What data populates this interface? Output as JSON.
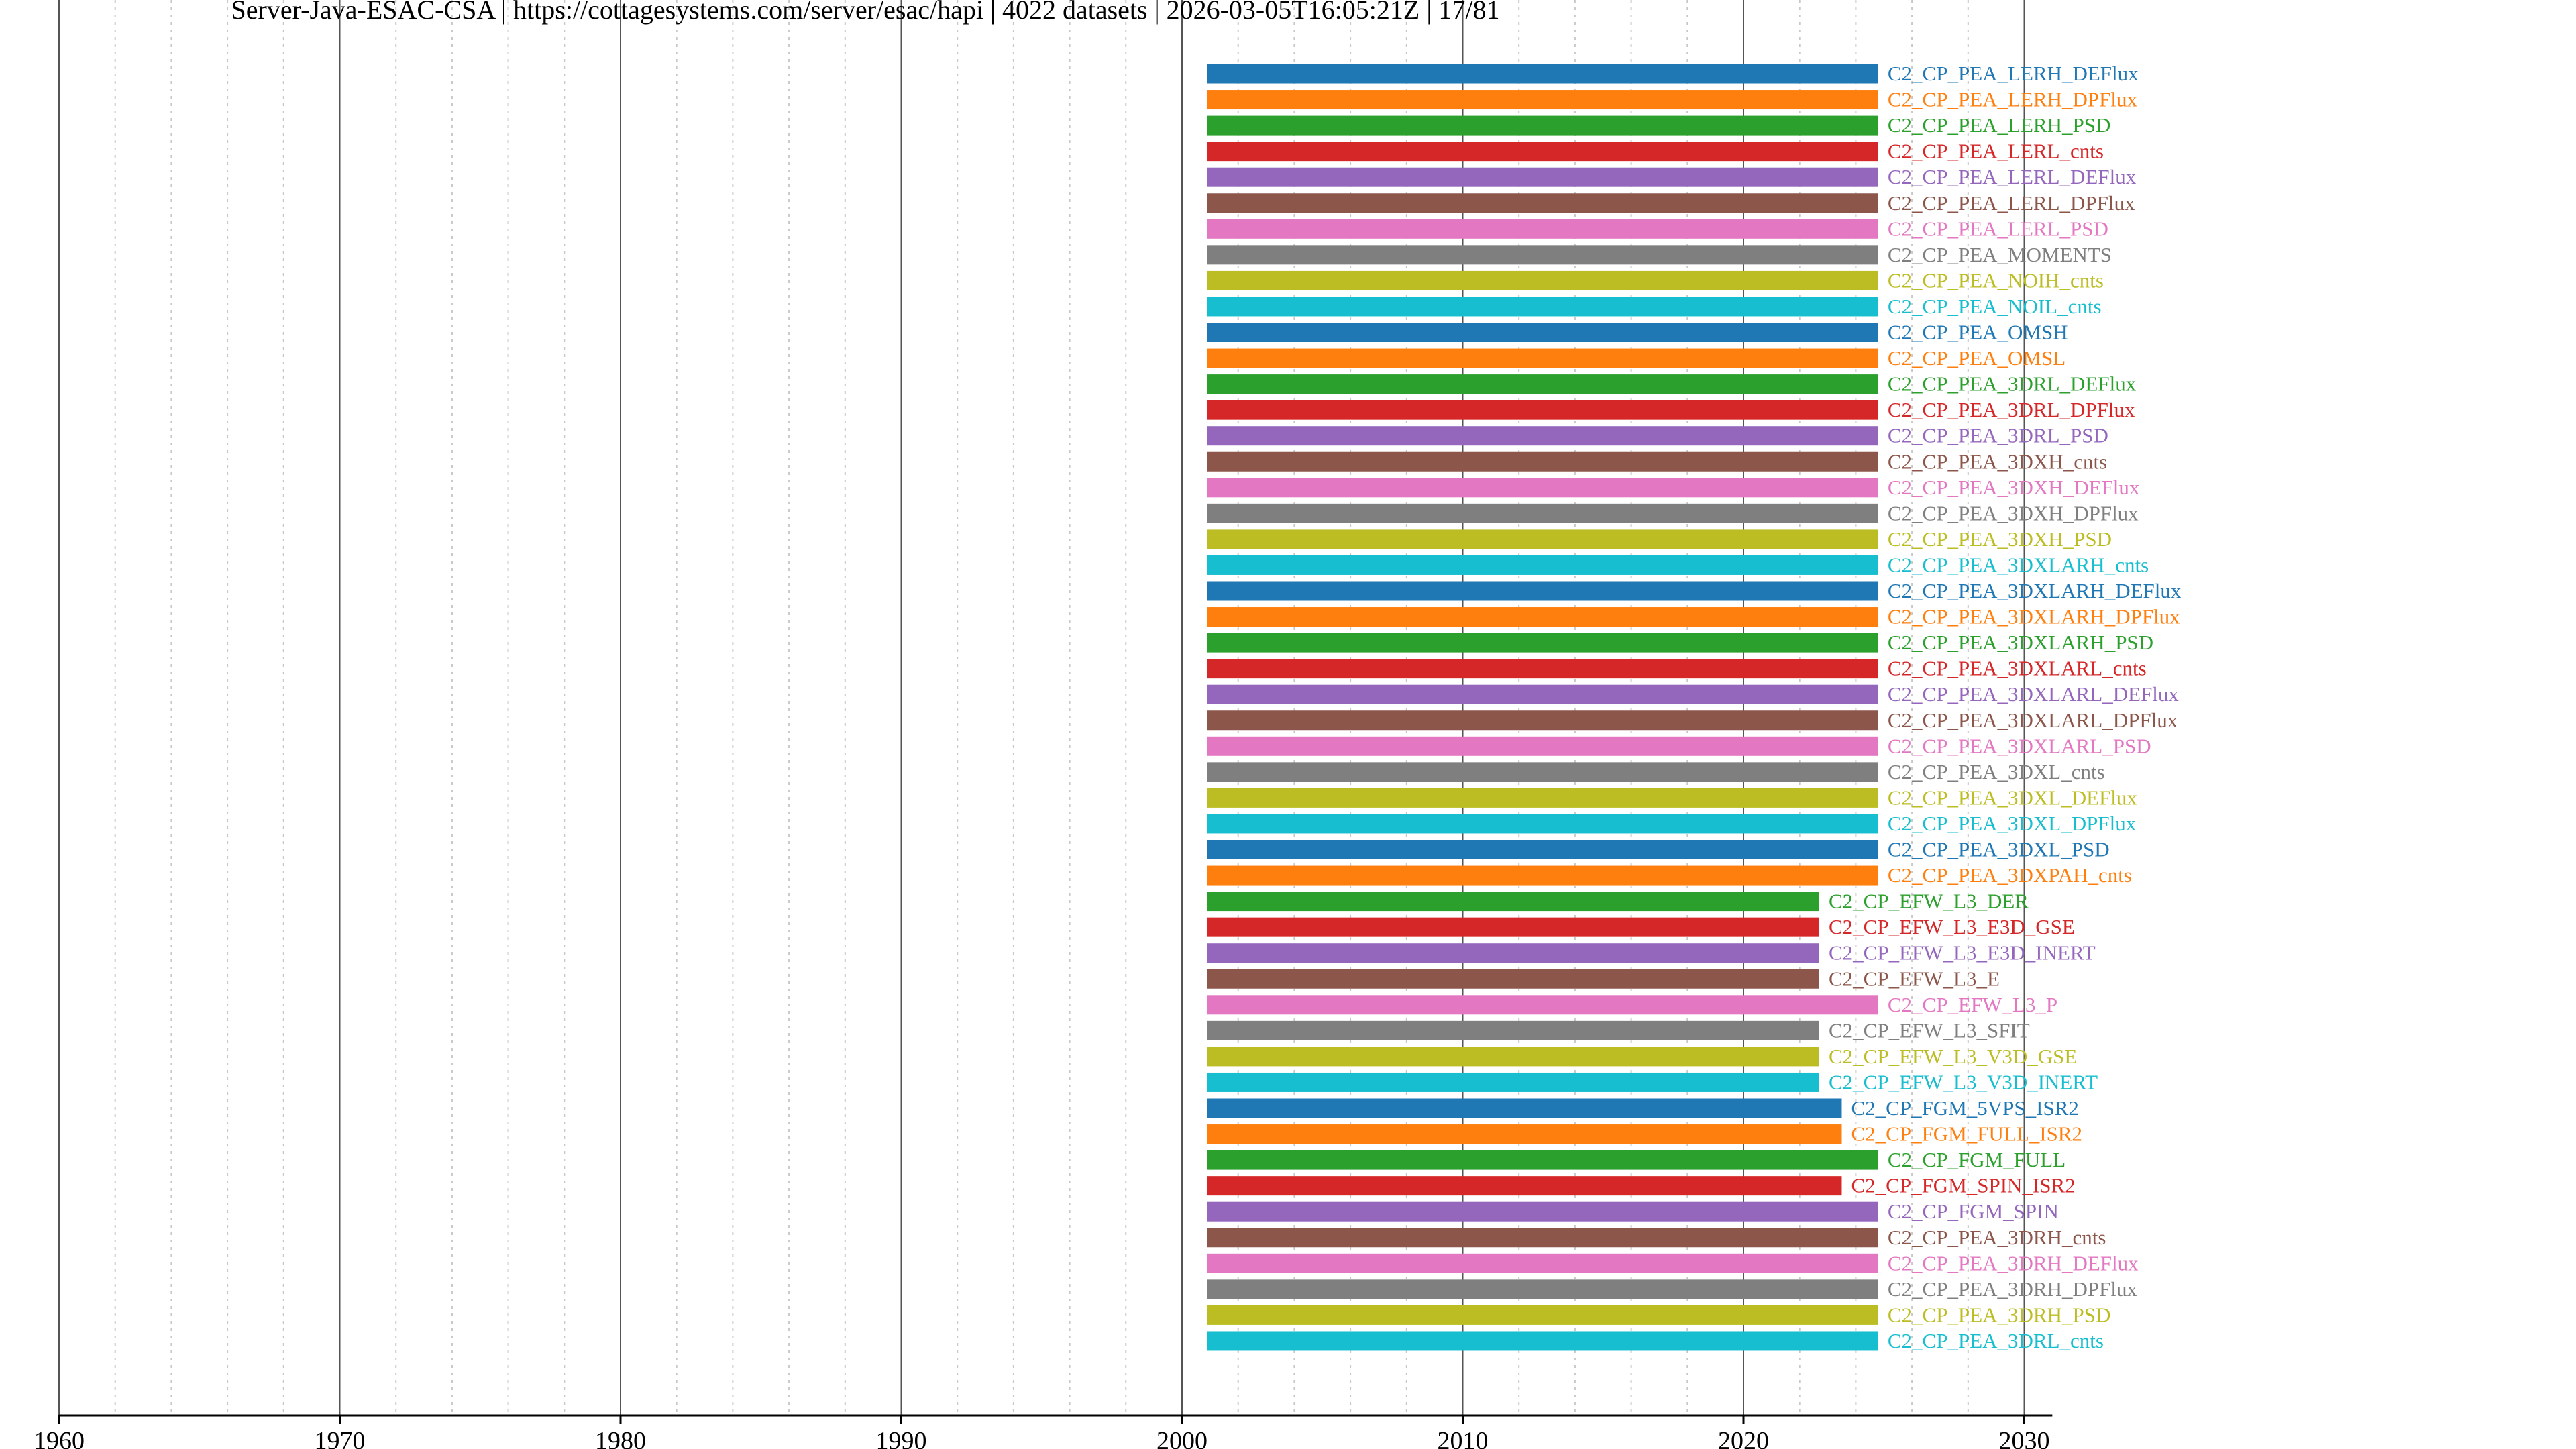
{
  "chart_data": {
    "type": "bar",
    "orientation": "horizontal-timeline",
    "title": "Server-Java-ESAC-CSA | https://cottagesystems.com/server/esac/hapi | 4022 datasets | 2026-03-05T16:05:21Z | 17/81",
    "xlabel": "",
    "ylabel": "",
    "xlim": [
      1960,
      2031
    ],
    "x_ticks_major": [
      "1960",
      "1970",
      "1980",
      "1990",
      "2000",
      "2010",
      "2020",
      "2030"
    ],
    "x_minor_step": 2,
    "grid": "vertical: solid at decades, dotted every 2 years",
    "labels_position": "right of each bar",
    "palette": [
      "#1f77b4",
      "#ff7f0e",
      "#2ca02c",
      "#d62728",
      "#9467bd",
      "#8c564b",
      "#e377c2",
      "#7f7f7f",
      "#bcbd22",
      "#17becf"
    ],
    "series": [
      {
        "name": "C2_CP_PEA_LERH_DEFlux",
        "start": 2000.9,
        "end": 2024.8
      },
      {
        "name": "C2_CP_PEA_LERH_DPFlux",
        "start": 2000.9,
        "end": 2024.8
      },
      {
        "name": "C2_CP_PEA_LERH_PSD",
        "start": 2000.9,
        "end": 2024.8
      },
      {
        "name": "C2_CP_PEA_LERL_cnts",
        "start": 2000.9,
        "end": 2024.8
      },
      {
        "name": "C2_CP_PEA_LERL_DEFlux",
        "start": 2000.9,
        "end": 2024.8
      },
      {
        "name": "C2_CP_PEA_LERL_DPFlux",
        "start": 2000.9,
        "end": 2024.8
      },
      {
        "name": "C2_CP_PEA_LERL_PSD",
        "start": 2000.9,
        "end": 2024.8
      },
      {
        "name": "C2_CP_PEA_MOMENTS",
        "start": 2000.9,
        "end": 2024.8
      },
      {
        "name": "C2_CP_PEA_NOIH_cnts",
        "start": 2000.9,
        "end": 2024.8
      },
      {
        "name": "C2_CP_PEA_NOIL_cnts",
        "start": 2000.9,
        "end": 2024.8
      },
      {
        "name": "C2_CP_PEA_OMSH",
        "start": 2000.9,
        "end": 2024.8
      },
      {
        "name": "C2_CP_PEA_OMSL",
        "start": 2000.9,
        "end": 2024.8
      },
      {
        "name": "C2_CP_PEA_3DRL_DEFlux",
        "start": 2000.9,
        "end": 2024.8
      },
      {
        "name": "C2_CP_PEA_3DRL_DPFlux",
        "start": 2000.9,
        "end": 2024.8
      },
      {
        "name": "C2_CP_PEA_3DRL_PSD",
        "start": 2000.9,
        "end": 2024.8
      },
      {
        "name": "C2_CP_PEA_3DXH_cnts",
        "start": 2000.9,
        "end": 2024.8
      },
      {
        "name": "C2_CP_PEA_3DXH_DEFlux",
        "start": 2000.9,
        "end": 2024.8
      },
      {
        "name": "C2_CP_PEA_3DXH_DPFlux",
        "start": 2000.9,
        "end": 2024.8
      },
      {
        "name": "C2_CP_PEA_3DXH_PSD",
        "start": 2000.9,
        "end": 2024.8
      },
      {
        "name": "C2_CP_PEA_3DXLARH_cnts",
        "start": 2000.9,
        "end": 2024.8
      },
      {
        "name": "C2_CP_PEA_3DXLARH_DEFlux",
        "start": 2000.9,
        "end": 2024.8
      },
      {
        "name": "C2_CP_PEA_3DXLARH_DPFlux",
        "start": 2000.9,
        "end": 2024.8
      },
      {
        "name": "C2_CP_PEA_3DXLARH_PSD",
        "start": 2000.9,
        "end": 2024.8
      },
      {
        "name": "C2_CP_PEA_3DXLARL_cnts",
        "start": 2000.9,
        "end": 2024.8
      },
      {
        "name": "C2_CP_PEA_3DXLARL_DEFlux",
        "start": 2000.9,
        "end": 2024.8
      },
      {
        "name": "C2_CP_PEA_3DXLARL_DPFlux",
        "start": 2000.9,
        "end": 2024.8
      },
      {
        "name": "C2_CP_PEA_3DXLARL_PSD",
        "start": 2000.9,
        "end": 2024.8
      },
      {
        "name": "C2_CP_PEA_3DXL_cnts",
        "start": 2000.9,
        "end": 2024.8
      },
      {
        "name": "C2_CP_PEA_3DXL_DEFlux",
        "start": 2000.9,
        "end": 2024.8
      },
      {
        "name": "C2_CP_PEA_3DXL_DPFlux",
        "start": 2000.9,
        "end": 2024.8
      },
      {
        "name": "C2_CP_PEA_3DXL_PSD",
        "start": 2000.9,
        "end": 2024.8
      },
      {
        "name": "C2_CP_PEA_3DXPAH_cnts",
        "start": 2000.9,
        "end": 2024.8
      },
      {
        "name": "C2_CP_EFW_L3_DER",
        "start": 2000.9,
        "end": 2022.7
      },
      {
        "name": "C2_CP_EFW_L3_E3D_GSE",
        "start": 2000.9,
        "end": 2022.7
      },
      {
        "name": "C2_CP_EFW_L3_E3D_INERT",
        "start": 2000.9,
        "end": 2022.7
      },
      {
        "name": "C2_CP_EFW_L3_E",
        "start": 2000.9,
        "end": 2022.7
      },
      {
        "name": "C2_CP_EFW_L3_P",
        "start": 2000.9,
        "end": 2024.8
      },
      {
        "name": "C2_CP_EFW_L3_SFIT",
        "start": 2000.9,
        "end": 2022.7
      },
      {
        "name": "C2_CP_EFW_L3_V3D_GSE",
        "start": 2000.9,
        "end": 2022.7
      },
      {
        "name": "C2_CP_EFW_L3_V3D_INERT",
        "start": 2000.9,
        "end": 2022.7
      },
      {
        "name": "C2_CP_FGM_5VPS_ISR2",
        "start": 2000.9,
        "end": 2023.5
      },
      {
        "name": "C2_CP_FGM_FULL_ISR2",
        "start": 2000.9,
        "end": 2023.5
      },
      {
        "name": "C2_CP_FGM_FULL",
        "start": 2000.9,
        "end": 2024.8
      },
      {
        "name": "C2_CP_FGM_SPIN_ISR2",
        "start": 2000.9,
        "end": 2023.5
      },
      {
        "name": "C2_CP_FGM_SPIN",
        "start": 2000.9,
        "end": 2024.8
      },
      {
        "name": "C2_CP_PEA_3DRH_cnts",
        "start": 2000.9,
        "end": 2024.8
      },
      {
        "name": "C2_CP_PEA_3DRH_DEFlux",
        "start": 2000.9,
        "end": 2024.8
      },
      {
        "name": "C2_CP_PEA_3DRH_DPFlux",
        "start": 2000.9,
        "end": 2024.8
      },
      {
        "name": "C2_CP_PEA_3DRH_PSD",
        "start": 2000.9,
        "end": 2024.8
      },
      {
        "name": "C2_CP_PEA_3DRL_cnts",
        "start": 2000.9,
        "end": 2024.8
      }
    ]
  }
}
